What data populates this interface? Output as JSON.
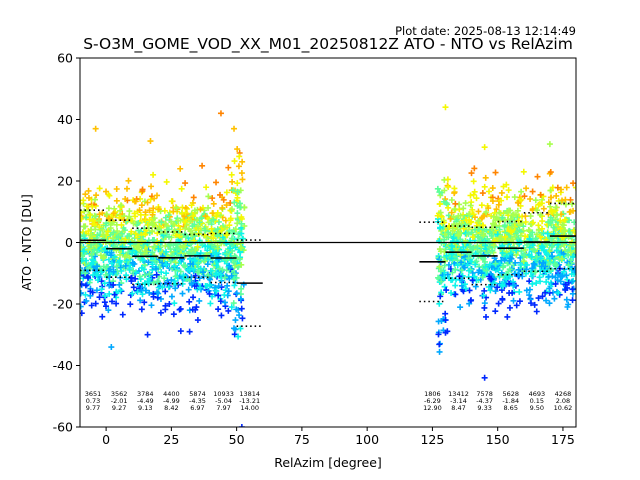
{
  "plot_date": "Plot date: 2025-08-13 12:14:49",
  "chart_data": {
    "type": "scatter",
    "title": "S-O3M_GOME_VOD_XX_M01_20250812Z ATO - NTO vs RelAzim",
    "xlabel": "RelAzim [degree]",
    "ylabel": "ATO - NTO [DU]",
    "xlim": [
      -10,
      180
    ],
    "ylim": [
      -60,
      60
    ],
    "xticks": [
      0,
      25,
      50,
      75,
      100,
      125,
      150,
      175
    ],
    "yticks": [
      -60,
      -40,
      -20,
      0,
      20,
      40,
      60
    ],
    "grid": false,
    "legend": "none",
    "marker": "+",
    "colormap": [
      "#0028ff",
      "#00a8ff",
      "#0cf4ea",
      "#5cff9a",
      "#a8ff4e",
      "#f4f802",
      "#ffc000",
      "#ff8400"
    ],
    "zero_line": 0,
    "bins": [
      {
        "x_from": -10,
        "x_to": 0,
        "count": "3651",
        "mean": "0.73",
        "std": "9.77"
      },
      {
        "x_from": 0,
        "x_to": 10,
        "count": "3562",
        "mean": "-2.01",
        "std": "9.27"
      },
      {
        "x_from": 10,
        "x_to": 20,
        "count": "3784",
        "mean": "-4.49",
        "std": "9.13"
      },
      {
        "x_from": 20,
        "x_to": 30,
        "count": "4400",
        "mean": "-4.99",
        "std": "8.42"
      },
      {
        "x_from": 30,
        "x_to": 40,
        "count": "5874",
        "mean": "-4.35",
        "std": "6.97"
      },
      {
        "x_from": 40,
        "x_to": 50,
        "count": "10933",
        "mean": "-5.04",
        "std": "7.97"
      },
      {
        "x_from": 50,
        "x_to": 60,
        "count": "13814",
        "mean": "-13.21",
        "std": "14.00"
      },
      {
        "x_from": 120,
        "x_to": 130,
        "count": "1806",
        "mean": "-6.29",
        "std": "12.90"
      },
      {
        "x_from": 130,
        "x_to": 140,
        "count": "13412",
        "mean": "-3.14",
        "std": "8.47"
      },
      {
        "x_from": 140,
        "x_to": 150,
        "count": "7578",
        "mean": "-4.37",
        "std": "9.33"
      },
      {
        "x_from": 150,
        "x_to": 160,
        "count": "5628",
        "mean": "-1.84",
        "std": "8.65"
      },
      {
        "x_from": 160,
        "x_to": 170,
        "count": "4693",
        "mean": "0.15",
        "std": "9.50"
      },
      {
        "x_from": 170,
        "x_to": 180,
        "count": "4268",
        "mean": "2.08",
        "std": "10.62"
      }
    ],
    "point_clusters": [
      {
        "x_range": [
          -10,
          53
        ],
        "y_center": -2,
        "y_spread": 16
      },
      {
        "x_range": [
          127,
          180
        ],
        "y_center": -1,
        "y_spread": 16
      }
    ],
    "notable_points": [
      {
        "x": 44,
        "y": 42
      },
      {
        "x": 130,
        "y": 44
      },
      {
        "x": -4,
        "y": 37
      },
      {
        "x": 49,
        "y": 37
      },
      {
        "x": 145,
        "y": -44
      },
      {
        "x": 170,
        "y": 32
      },
      {
        "x": 17,
        "y": 33
      },
      {
        "x": 145,
        "y": 31
      },
      {
        "x": 18,
        "y": 22
      },
      {
        "x": 160,
        "y": 23
      },
      {
        "x": 2,
        "y": -34
      },
      {
        "x": 32,
        "y": -29
      },
      {
        "x": 52,
        "y": -60
      }
    ]
  }
}
